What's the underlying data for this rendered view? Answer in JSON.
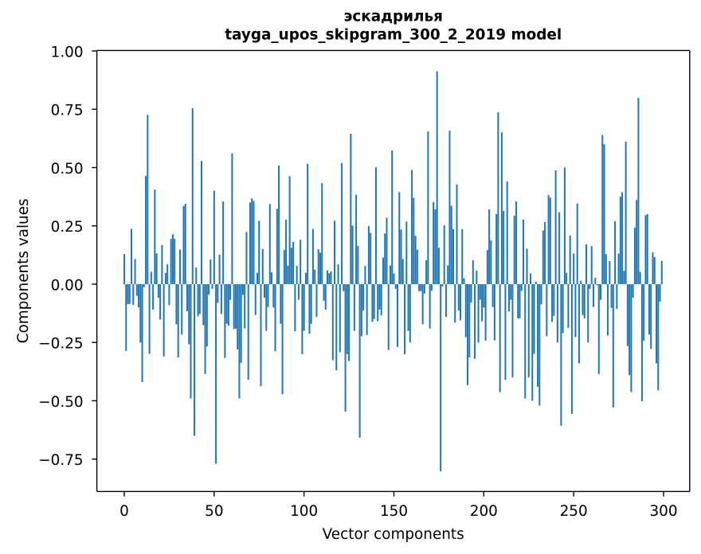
{
  "chart_data": {
    "type": "bar",
    "title": "эскадрилья",
    "subtitle": "tayga_upos_skipgram_300_2_2019 model",
    "xlabel": "Vector components",
    "ylabel": "Components values",
    "x_tick_labels": [
      "0",
      "50",
      "100",
      "150",
      "200",
      "250",
      "300"
    ],
    "x_tick_values": [
      0,
      50,
      100,
      150,
      200,
      250,
      300
    ],
    "y_tick_labels": [
      "1.00",
      "0.75",
      "0.50",
      "0.25",
      "0.00",
      "−0.25",
      "−0.50",
      "−0.75"
    ],
    "y_tick_values": [
      1.0,
      0.75,
      0.5,
      0.25,
      0.0,
      -0.25,
      -0.5,
      -0.75
    ],
    "ylim": [
      -0.889,
      1.002
    ],
    "xlim": [
      -15.1,
      314.6
    ],
    "bar_color": "#1f77b4",
    "axis_color": "#000000",
    "grid": false,
    "legend": null,
    "n_components": 300,
    "values": [
      0.129,
      -0.286,
      -0.085,
      -0.085,
      0.237,
      -0.089,
      0.108,
      -0.05,
      -0.1,
      -0.25,
      -0.42,
      -0.013,
      0.464,
      0.726,
      -0.299,
      0.053,
      -0.109,
      0.406,
      0.132,
      -0.058,
      -0.152,
      0.168,
      -0.31,
      0.048,
      0.085,
      -0.09,
      0.194,
      0.214,
      0.195,
      -0.172,
      -0.314,
      0.148,
      -0.216,
      0.335,
      0.345,
      -0.116,
      -0.258,
      -0.49,
      0.755,
      -0.65,
      0.072,
      -0.138,
      -0.128,
      0.528,
      -0.176,
      -0.385,
      -0.267,
      -0.045,
      0.106,
      -0.02,
      0.401,
      -0.77,
      -0.08,
      0.127,
      -0.128,
      0.355,
      -0.316,
      -0.17,
      -0.178,
      -0.067,
      0.561,
      -0.193,
      -0.191,
      -0.28,
      -0.49,
      -0.337,
      -0.046,
      -0.19,
      0.224,
      -0.41,
      0.35,
      0.368,
      0.357,
      -0.132,
      0.049,
      0.272,
      -0.437,
      0.151,
      -0.058,
      -0.2,
      -0.098,
      0.344,
      0.051,
      -0.1,
      -0.288,
      0.323,
      0.509,
      -0.17,
      -0.472,
      0.146,
      0.276,
      0.079,
      0.463,
      0.156,
      0.182,
      -0.202,
      0.079,
      -0.067,
      0.19,
      -0.3,
      -0.2,
      0.049,
      0.516,
      -0.212,
      -0.17,
      0.237,
      0.062,
      -0.14,
      0.15,
      0.135,
      0.433,
      -0.071,
      -0.109,
      0.059,
      0.047,
      0.055,
      -0.326,
      0.272,
      -0.37,
      0.085,
      -0.292,
      0.52,
      -0.03,
      -0.546,
      -0.3,
      -0.33,
      0.645,
      0.251,
      -0.2,
      0.384,
      0.164,
      -0.658,
      -0.223,
      -0.113,
      0.078,
      -0.218,
      0.249,
      0.22,
      -0.162,
      -0.149,
      0.501,
      -0.159,
      -0.109,
      -0.134,
      0.114,
      0.217,
      0.285,
      -0.282,
      0.08,
      0.573,
      0.046,
      -0.02,
      -0.269,
      0.395,
      0.234,
      0.108,
      -0.3,
      0.268,
      -0.2,
      -0.25,
      0.49,
      0.37,
      0.207,
      0.148,
      -0.03,
      -0.03,
      -0.172,
      -0.04,
      0.103,
      0.655,
      -0.19,
      -0.028,
      0.352,
      0.321,
      0.913,
      0.156,
      -0.803,
      -0.01,
      0.252,
      -0.14,
      0.081,
      0.658,
      0.336,
      0.236,
      -0.165,
      0.428,
      -0.113,
      -0.155,
      0.236,
      0.025,
      -0.227,
      -0.433,
      -0.314,
      -0.079,
      0.103,
      -0.32,
      0.058,
      -0.251,
      -0.067,
      -0.159,
      -0.1,
      -0.242,
      0.146,
      0.321,
      0.188,
      -0.098,
      -0.241,
      0.3,
      0.737,
      -0.463,
      0.651,
      0.314,
      -0.41,
      0.44,
      -0.117,
      -0.067,
      -0.4,
      0.293,
      0.355,
      -0.147,
      -0.147,
      -0.029,
      0.277,
      -0.49,
      0.152,
      -0.4,
      0.046,
      -0.5,
      -0.299,
      0.011,
      -0.44,
      -0.52,
      -0.086,
      0.23,
      0.266,
      -0.223,
      0.382,
      0.371,
      -0.162,
      -0.136,
      0.488,
      -0.25,
      0.308,
      -0.607,
      -0.21,
      0.5,
      0.049,
      -0.187,
      0.209,
      -0.556,
      0.131,
      -0.227,
      0.346,
      -0.34,
      0.015,
      -0.132,
      -0.147,
      0.171,
      -0.25,
      -0.02,
      0.163,
      -0.098,
      0.027,
      -0.005,
      -0.385,
      -0.067,
      0.64,
      0.6,
      0.129,
      -0.22,
      0.099,
      -0.102,
      -0.528,
      0.27,
      -0.106,
      0.131,
      0.375,
      0.394,
      0.057,
      0.611,
      -0.265,
      -0.39,
      -0.463,
      -0.058,
      0.242,
      0.361,
      0.799,
      0.053,
      -0.502,
      -0.243,
      0.296,
      0.3,
      -0.216,
      -0.277,
      0.137,
      0.116,
      -0.34,
      -0.455,
      -0.075,
      0.1
    ]
  }
}
